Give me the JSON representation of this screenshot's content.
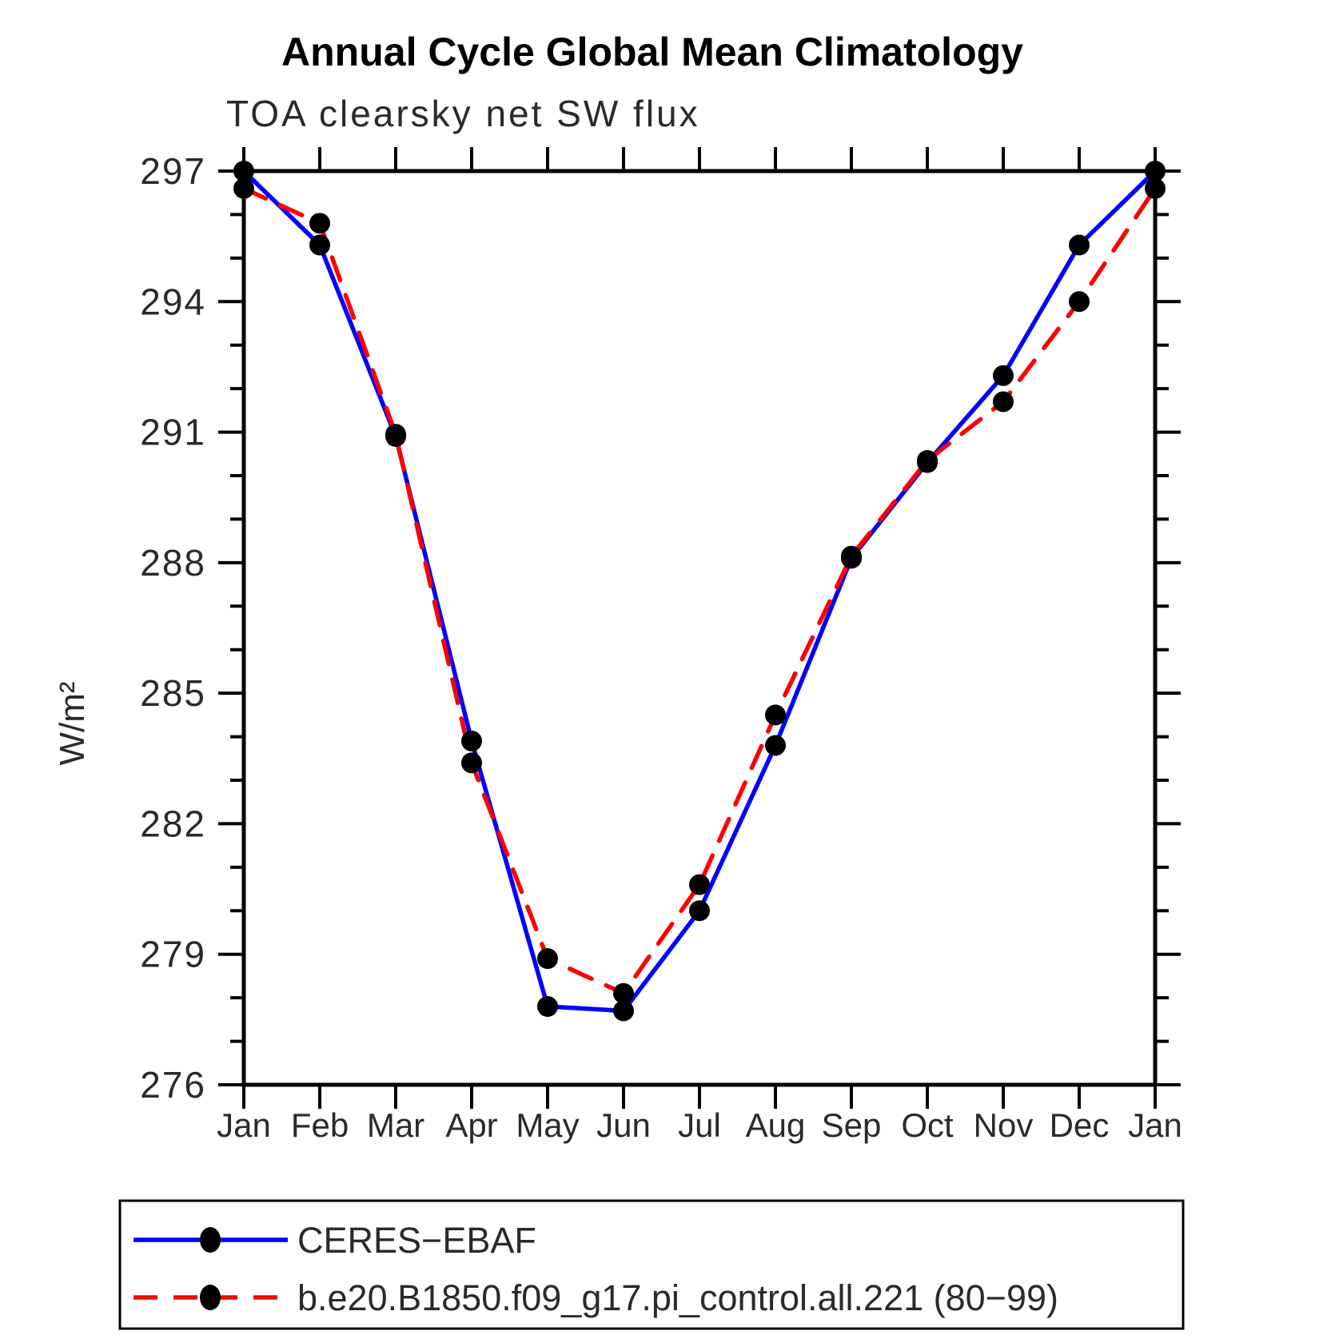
{
  "page": {
    "background": "#ffffff"
  },
  "header": {
    "title": "Annual Cycle Global Mean Climatology",
    "subtitle": "TOA clearsky net SW flux"
  },
  "chart_data": {
    "type": "line",
    "title": "Annual Cycle Global Mean Climatology",
    "subtitle": "TOA clearsky net SW flux",
    "xlabel": "",
    "ylabel": "W/m²",
    "categories": [
      "Jan",
      "Feb",
      "Mar",
      "Apr",
      "May",
      "Jun",
      "Jul",
      "Aug",
      "Sep",
      "Oct",
      "Nov",
      "Dec",
      "Jan"
    ],
    "series": [
      {
        "name": "CERES−EBAF",
        "color": "#0000ff",
        "line_style": "solid",
        "marker": "circle",
        "marker_color": "#000000",
        "values": [
          297.0,
          295.3,
          290.9,
          283.9,
          277.8,
          277.7,
          280.0,
          283.8,
          288.1,
          290.3,
          292.3,
          295.3,
          297.0
        ]
      },
      {
        "name": "b.e20.B1850.f09_g17.pi_control.all.221 (80−99)",
        "color": "#ff0000",
        "line_style": "dashed",
        "marker": "circle",
        "marker_color": "#000000",
        "values": [
          296.6,
          295.8,
          290.95,
          283.4,
          278.9,
          278.1,
          280.6,
          284.5,
          288.15,
          290.35,
          291.7,
          294.0,
          296.6
        ]
      }
    ],
    "ylim": [
      276,
      297
    ],
    "ytick_major": [
      276,
      279,
      282,
      285,
      288,
      291,
      294,
      297
    ],
    "ytick_minor_step": 1,
    "grid": false,
    "legend_position": "bottom-left-box"
  }
}
